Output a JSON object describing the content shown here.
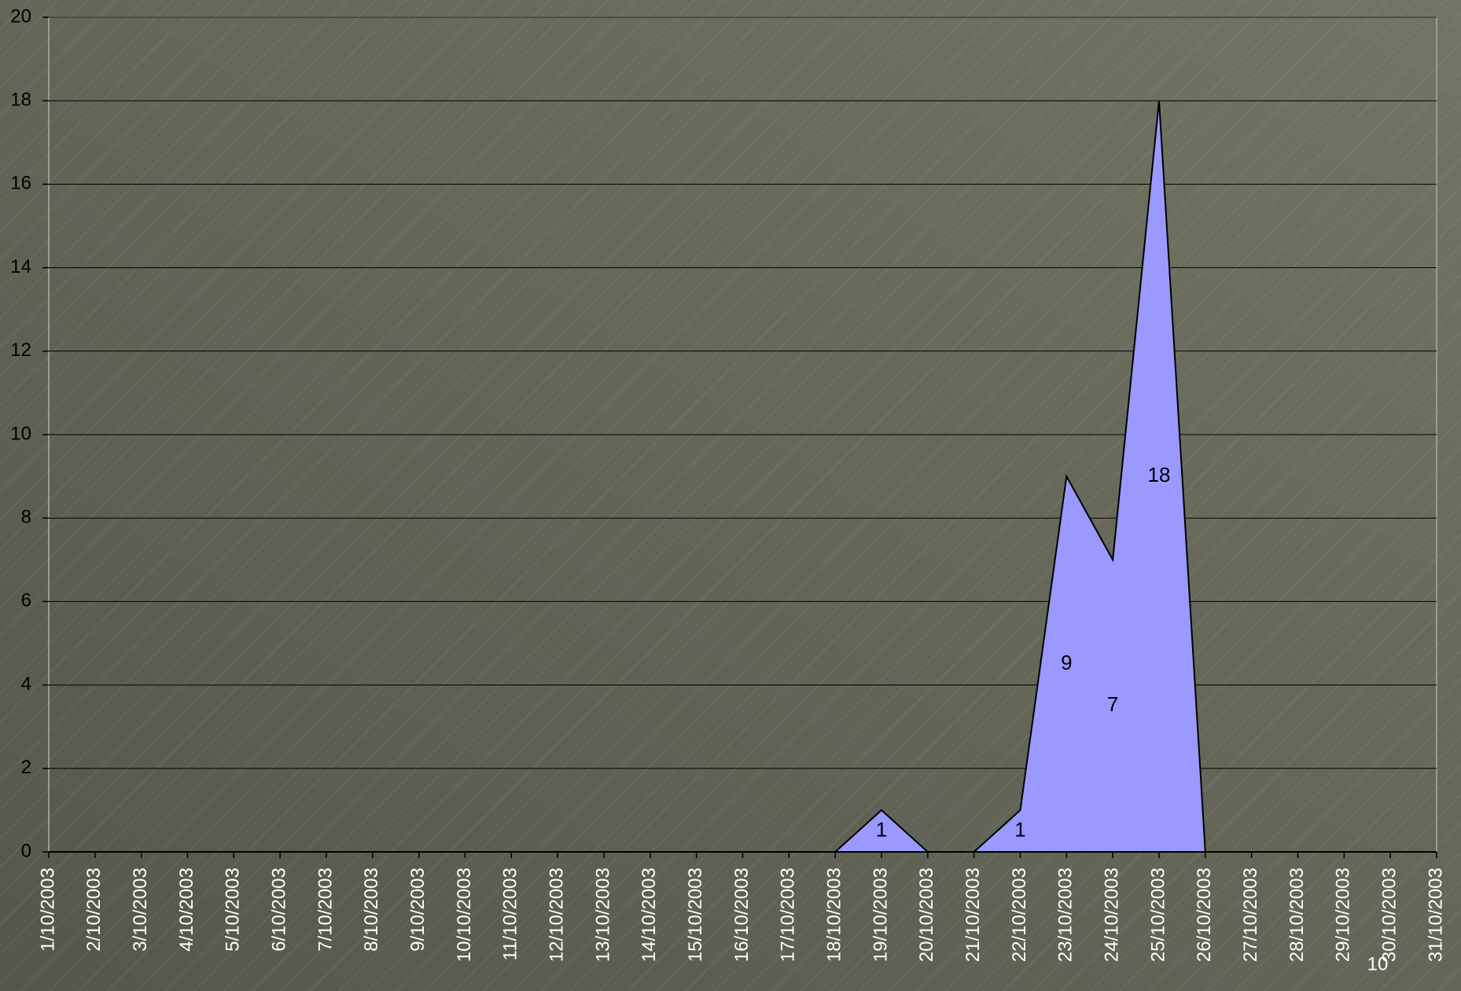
{
  "chart_data": {
    "type": "area",
    "categories": [
      "1/10/2003",
      "2/10/2003",
      "3/10/2003",
      "4/10/2003",
      "5/10/2003",
      "6/10/2003",
      "7/10/2003",
      "8/10/2003",
      "9/10/2003",
      "10/10/2003",
      "11/10/2003",
      "12/10/2003",
      "13/10/2003",
      "14/10/2003",
      "15/10/2003",
      "16/10/2003",
      "17/10/2003",
      "18/10/2003",
      "19/10/2003",
      "20/10/2003",
      "21/10/2003",
      "22/10/2003",
      "23/10/2003",
      "24/10/2003",
      "25/10/2003",
      "26/10/2003",
      "27/10/2003",
      "28/10/2003",
      "29/10/2003",
      "30/10/2003",
      "31/10/2003"
    ],
    "values": [
      0,
      0,
      0,
      0,
      0,
      0,
      0,
      0,
      0,
      0,
      0,
      0,
      0,
      0,
      0,
      0,
      0,
      0,
      1,
      0,
      0,
      1,
      9,
      7,
      18,
      0,
      0,
      0,
      0,
      0,
      0
    ],
    "color": "#9999ff",
    "ylim": [
      0,
      20
    ],
    "yticks": [
      0,
      2,
      4,
      6,
      8,
      10,
      12,
      14,
      16,
      18,
      20
    ],
    "grid": true
  },
  "page_number": "10"
}
